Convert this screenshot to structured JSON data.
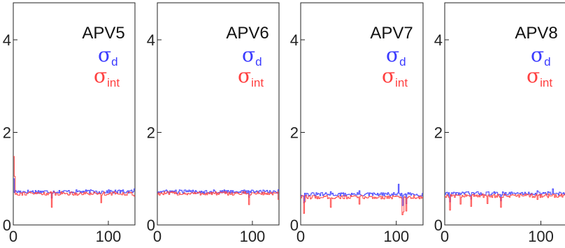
{
  "chart_data": [
    {
      "type": "line",
      "title": "APV5",
      "legend": [
        {
          "symbol": "σ",
          "sub": "d",
          "color": "#3b3bff"
        },
        {
          "symbol": "σ",
          "sub": "int",
          "color": "#ff4040"
        }
      ],
      "xlim": [
        0,
        128
      ],
      "ylim": [
        0,
        4.8
      ],
      "xticks": [
        {
          "v": 0,
          "label": "0"
        },
        {
          "v": 100,
          "label": "100"
        }
      ],
      "yticks": [
        {
          "v": 0,
          "label": "0"
        },
        {
          "v": 2,
          "label": "2"
        },
        {
          "v": 4,
          "label": "4"
        }
      ],
      "baseline_d": 0.72,
      "baseline_int": 0.68,
      "spikes_d": [
        [
          0,
          1.0
        ],
        [
          40,
          0.58
        ],
        [
          127,
          0.78
        ]
      ],
      "spikes_int": [
        [
          0,
          1.48
        ],
        [
          1,
          1.05
        ],
        [
          40,
          0.38
        ],
        [
          92,
          0.48
        ],
        [
          127,
          0.62
        ]
      ]
    },
    {
      "type": "line",
      "title": "APV6",
      "legend": [
        {
          "symbol": "σ",
          "sub": "d",
          "color": "#3b3bff"
        },
        {
          "symbol": "σ",
          "sub": "int",
          "color": "#ff4040"
        }
      ],
      "xlim": [
        0,
        128
      ],
      "ylim": [
        0,
        4.8
      ],
      "xticks": [
        {
          "v": 0,
          "label": "0"
        },
        {
          "v": 100,
          "label": "100"
        }
      ],
      "yticks": [
        {
          "v": 0,
          "label": "0"
        },
        {
          "v": 2,
          "label": "2"
        },
        {
          "v": 4,
          "label": "4"
        }
      ],
      "baseline_d": 0.72,
      "baseline_int": 0.68,
      "spikes_d": [
        [
          96,
          0.6
        ],
        [
          127,
          0.76
        ]
      ],
      "spikes_int": [
        [
          96,
          0.44
        ],
        [
          127,
          0.55
        ]
      ]
    },
    {
      "type": "line",
      "title": "APV7",
      "legend": [
        {
          "symbol": "σ",
          "sub": "d",
          "color": "#3b3bff"
        },
        {
          "symbol": "σ",
          "sub": "int",
          "color": "#ff4040"
        }
      ],
      "xlim": [
        0,
        128
      ],
      "ylim": [
        0,
        4.8
      ],
      "xticks": [
        {
          "v": 0,
          "label": "0"
        },
        {
          "v": 100,
          "label": "100"
        }
      ],
      "yticks": [
        {
          "v": 0,
          "label": "0"
        },
        {
          "v": 2,
          "label": "2"
        },
        {
          "v": 4,
          "label": "4"
        }
      ],
      "baseline_d": 0.66,
      "baseline_int": 0.6,
      "spikes_d": [
        [
          3,
          0.48
        ],
        [
          31,
          0.72
        ],
        [
          61,
          0.74
        ],
        [
          102,
          0.88
        ],
        [
          106,
          0.42
        ],
        [
          110,
          0.46
        ]
      ],
      "spikes_int": [
        [
          3,
          0.25
        ],
        [
          4,
          0.5
        ],
        [
          31,
          0.38
        ],
        [
          61,
          0.45
        ],
        [
          106,
          0.22
        ],
        [
          107,
          0.28
        ],
        [
          110,
          0.3
        ]
      ]
    },
    {
      "type": "line",
      "title": "APV8",
      "legend": [
        {
          "symbol": "σ",
          "sub": "d",
          "color": "#3b3bff"
        },
        {
          "symbol": "σ",
          "sub": "int",
          "color": "#ff4040"
        }
      ],
      "xlim": [
        0,
        128
      ],
      "ylim": [
        0,
        4.8
      ],
      "xticks": [
        {
          "v": 0,
          "label": "0"
        },
        {
          "v": 100,
          "label": "100"
        }
      ],
      "yticks": [
        {
          "v": 0,
          "label": "0"
        },
        {
          "v": 2,
          "label": "2"
        },
        {
          "v": 4,
          "label": "4"
        }
      ],
      "baseline_d": 0.68,
      "baseline_int": 0.63,
      "spikes_d": [
        [
          5,
          0.5
        ],
        [
          27,
          0.56
        ],
        [
          58,
          0.52
        ],
        [
          96,
          0.74
        ],
        [
          112,
          0.78
        ]
      ],
      "spikes_int": [
        [
          5,
          0.32
        ],
        [
          16,
          0.45
        ],
        [
          27,
          0.4
        ],
        [
          44,
          0.46
        ],
        [
          58,
          0.38
        ],
        [
          96,
          0.55
        ]
      ]
    }
  ]
}
